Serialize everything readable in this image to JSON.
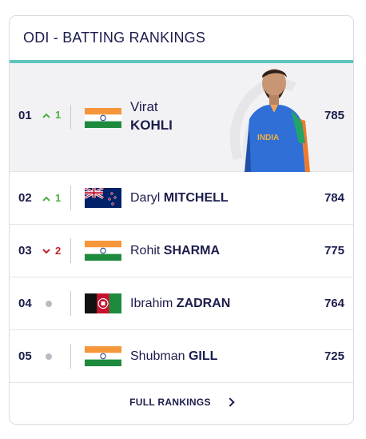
{
  "header": {
    "title": "ODI - BATTING RANKINGS"
  },
  "rows": [
    {
      "rank": "01",
      "movement": "up",
      "change": "1",
      "country": "India",
      "first": "Virat",
      "last": "KOHLI",
      "rating": "785"
    },
    {
      "rank": "02",
      "movement": "up",
      "change": "1",
      "country": "New Zealand",
      "first": "Daryl",
      "last": "MITCHELL",
      "rating": "784"
    },
    {
      "rank": "03",
      "movement": "down",
      "change": "2",
      "country": "India",
      "first": "Rohit",
      "last": "SHARMA",
      "rating": "775"
    },
    {
      "rank": "04",
      "movement": "none",
      "change": "",
      "country": "Afghanistan",
      "first": "Ibrahim",
      "last": "ZADRAN",
      "rating": "764"
    },
    {
      "rank": "05",
      "movement": "none",
      "change": "",
      "country": "India",
      "first": "Shubman",
      "last": "GILL",
      "rating": "725"
    }
  ],
  "footer": {
    "link_label": "FULL RANKINGS"
  },
  "colors": {
    "accent": "#5ec6bd",
    "up": "#4cae3f",
    "down": "#c0232c",
    "text": "#1b1d4d"
  }
}
